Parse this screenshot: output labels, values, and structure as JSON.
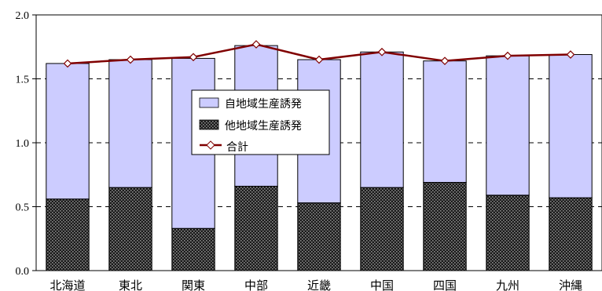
{
  "chart_data": {
    "type": "bar",
    "stacked": true,
    "categories": [
      "北海道",
      "東北",
      "関東",
      "中部",
      "近畿",
      "中国",
      "四国",
      "九州",
      "沖縄"
    ],
    "series": [
      {
        "name": "他地域生産誘発",
        "kind": "bar",
        "pattern": "dark-dotted",
        "color": "#3a3a3a",
        "values": [
          0.56,
          0.65,
          0.33,
          0.66,
          0.53,
          0.65,
          0.69,
          0.59,
          0.57
        ]
      },
      {
        "name": "自地域生産誘発",
        "kind": "bar",
        "color": "#ccccff",
        "values": [
          1.06,
          1.0,
          1.33,
          1.1,
          1.12,
          1.06,
          0.95,
          1.09,
          1.12
        ]
      },
      {
        "name": "合計",
        "kind": "line",
        "color": "#800000",
        "marker": "diamond",
        "values": [
          1.62,
          1.65,
          1.67,
          1.77,
          1.65,
          1.71,
          1.64,
          1.68,
          1.69
        ]
      }
    ],
    "yticks": [
      "0.0",
      "0.5",
      "1.0",
      "1.5",
      "2.0"
    ],
    "ylim": [
      0,
      2.0
    ],
    "grid": "horizontal-dashed",
    "legend": {
      "placement": "center-left",
      "entries": [
        "自地域生産誘発",
        "他地域生産誘発",
        "合計"
      ]
    }
  }
}
